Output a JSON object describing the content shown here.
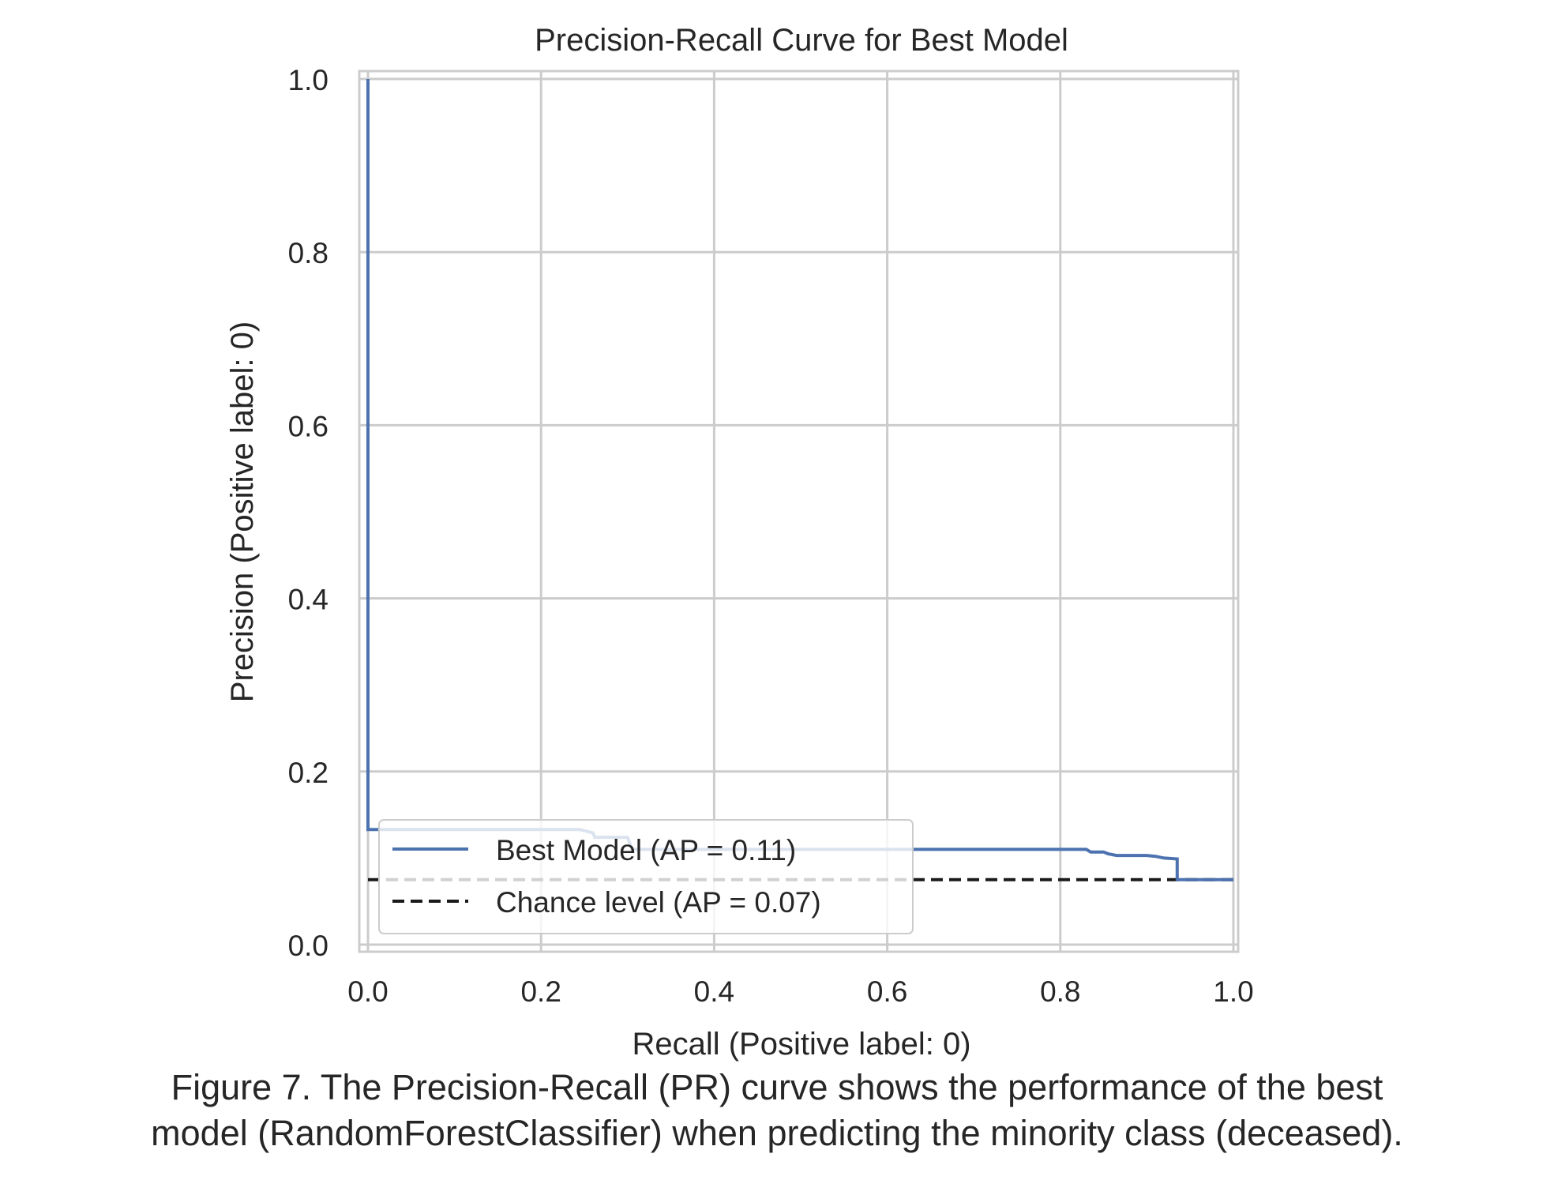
{
  "chart_data": {
    "type": "line",
    "title": "Precision-Recall Curve for Best Model",
    "xlabel": "Recall (Positive label: 0)",
    "ylabel": "Precision (Positive label: 0)",
    "xlim": [
      0.0,
      1.0
    ],
    "ylim": [
      0.0,
      1.0
    ],
    "xticks": [
      "0.0",
      "0.2",
      "0.4",
      "0.6",
      "0.8",
      "1.0"
    ],
    "yticks": [
      "0.0",
      "0.2",
      "0.4",
      "0.6",
      "0.8",
      "1.0"
    ],
    "grid": true,
    "legend_position": "lower-left",
    "series": [
      {
        "name": "Best Model (AP = 0.11)",
        "color": "#4c72b0",
        "style": "solid",
        "x": [
          0.0,
          0.0,
          0.0,
          0.245,
          0.26,
          0.262,
          0.3,
          0.305,
          0.6,
          0.83,
          0.835,
          0.85,
          0.855,
          0.865,
          0.9,
          0.91,
          0.92,
          0.935,
          0.935,
          1.0
        ],
        "y": [
          1.0,
          0.135,
          0.133,
          0.133,
          0.129,
          0.124,
          0.124,
          0.11,
          0.11,
          0.11,
          0.107,
          0.107,
          0.105,
          0.103,
          0.103,
          0.102,
          0.1,
          0.099,
          0.075,
          0.075
        ]
      },
      {
        "name": "Chance level (AP = 0.07)",
        "color": "#1a1a1a",
        "style": "dashed",
        "x": [
          0.0,
          1.0
        ],
        "y": [
          0.075,
          0.075
        ]
      }
    ]
  },
  "caption": {
    "line1": "Figure 7. The Precision-Recall (PR) curve shows the performance of the best",
    "line2": "model (RandomForestClassifier) when predicting the minority class (deceased)."
  }
}
